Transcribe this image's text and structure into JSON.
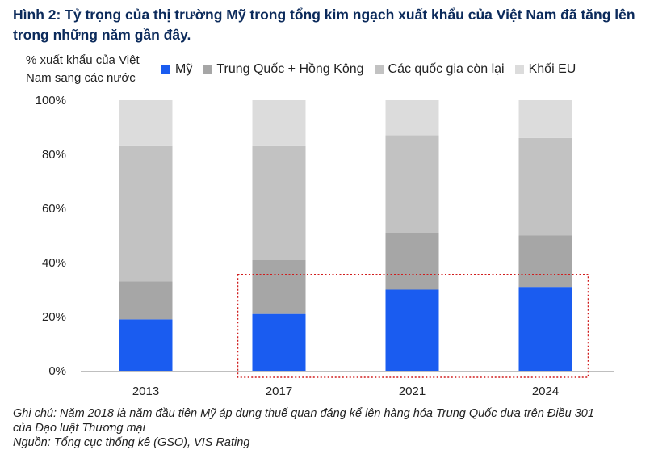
{
  "title": "Hình 2: Tỷ trọng của thị trường Mỹ trong tổng kim ngạch xuất khẩu của Việt Nam đã tăng lên trong những năm gần đây.",
  "notes": {
    "line1": "Ghi chú: Năm 2018 là năm đầu tiên Mỹ áp dụng thuế quan đáng kể lên hàng hóa Trung Quốc dựa trên Điều 301",
    "line2": "của Đạo luật Thương mại",
    "source": "Nguồn: Tổng cục thống kê (GSO), VIS Rating"
  },
  "colors": {
    "my": "#1a5cf0",
    "trung_quoc": "#a6a6a6",
    "con_lai": "#c2c2c2",
    "eu": "#dcdcdc",
    "highlight": "#d01c1c",
    "title": "#0b2a5b"
  },
  "chart_data": {
    "type": "bar",
    "stacked": true,
    "ylabel": "% xuất khẩu của Việt Nam sang các nước",
    "ylim": [
      0,
      100
    ],
    "yticks": [
      "0%",
      "20%",
      "40%",
      "60%",
      "80%",
      "100%"
    ],
    "grid": false,
    "legend_position": "top",
    "categories": [
      "2013",
      "2017",
      "2021",
      "2024"
    ],
    "series": [
      {
        "name": "Mỹ",
        "color_key": "my",
        "values": [
          19,
          21,
          30,
          31
        ]
      },
      {
        "name": "Trung Quốc + Hồng Kông",
        "color_key": "trung_quoc",
        "values": [
          14,
          20,
          21,
          19
        ]
      },
      {
        "name": "Các quốc gia còn lại",
        "color_key": "con_lai",
        "values": [
          50,
          42,
          36,
          36
        ]
      },
      {
        "name": "Khối EU",
        "color_key": "eu",
        "values": [
          17,
          17,
          13,
          14
        ]
      }
    ],
    "highlight": {
      "style": "dotted-box",
      "categories": [
        "2017",
        "2021",
        "2024"
      ],
      "ymax": 35
    }
  }
}
